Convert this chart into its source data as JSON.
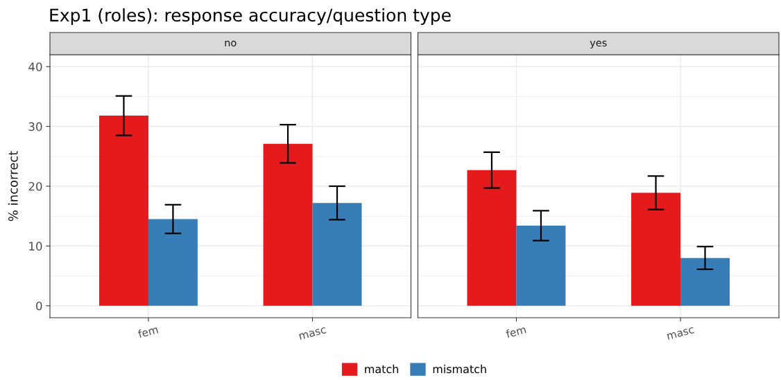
{
  "chart_data": [
    {
      "type": "bar",
      "title": "Exp1 (roles): response accuracy/question type",
      "subtitle": "no",
      "ylabel": "% incorrect",
      "categories": [
        "fem",
        "masc"
      ],
      "series": [
        {
          "name": "match",
          "color": "#e41a1c",
          "values": [
            31.8,
            27.1
          ],
          "errors": [
            3.3,
            3.2
          ]
        },
        {
          "name": "mismatch",
          "color": "#377eb8",
          "values": [
            14.5,
            17.2
          ],
          "errors": [
            2.4,
            2.8
          ]
        }
      ],
      "ylim": [
        -2,
        42
      ],
      "yticks": [
        0,
        10,
        20,
        30,
        40
      ],
      "grid": true,
      "legend": "bottom"
    },
    {
      "type": "bar",
      "subtitle": "yes",
      "categories": [
        "fem",
        "masc"
      ],
      "series": [
        {
          "color": "#e41a1c",
          "values": [
            22.7,
            18.9
          ],
          "errors": [
            3.0,
            2.8
          ]
        },
        {
          "color": "#377eb8",
          "values": [
            13.4,
            8.0
          ],
          "errors": [
            2.5,
            1.9
          ]
        }
      ],
      "ylim": [
        -2,
        42
      ],
      "yticks": [
        0,
        10,
        20,
        30,
        40
      ],
      "grid": true,
      "tick_labels": "x"
    }
  ]
}
